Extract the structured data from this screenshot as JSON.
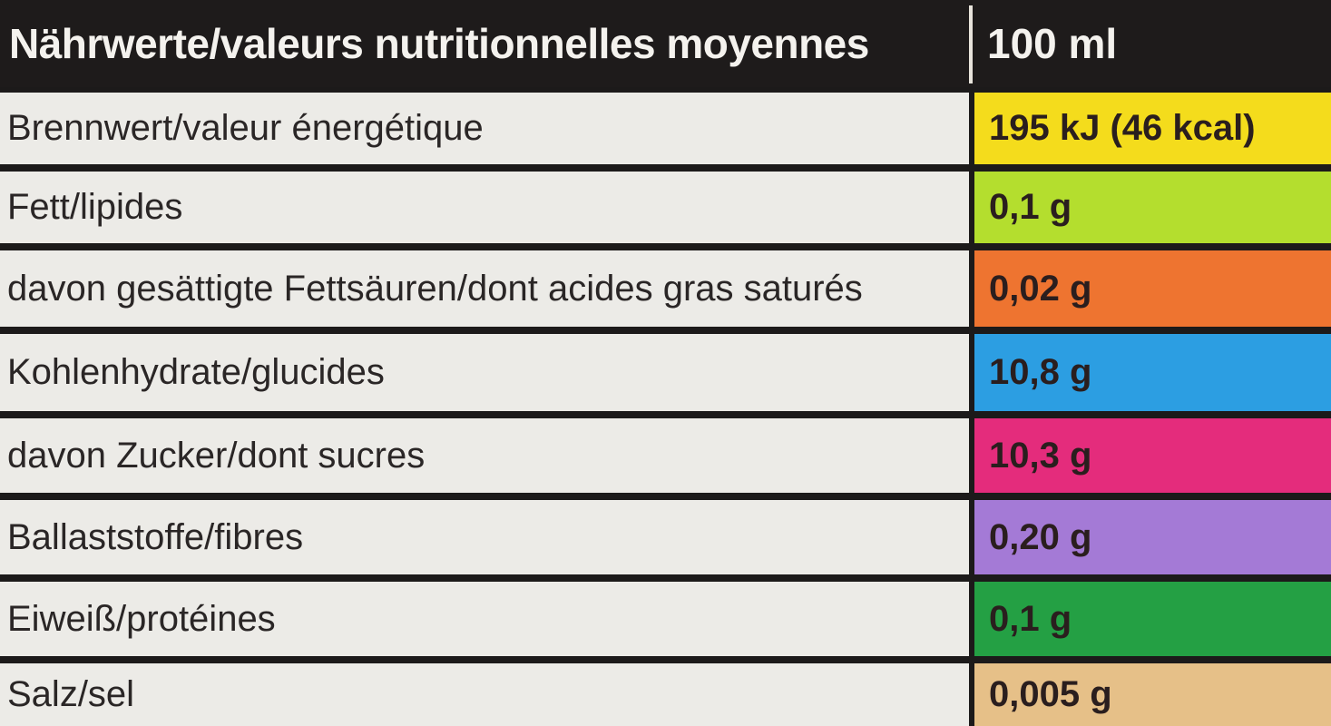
{
  "header": {
    "label": "Nährwerte/valeurs nutritionnelles moyennes",
    "unit": "100 ml"
  },
  "rows": [
    {
      "label": "Brennwert/valeur énergétique",
      "value": "195 kJ (46 kcal)",
      "color": "#f4dc1c"
    },
    {
      "label": "Fett/lipides",
      "value": "0,1 g",
      "color": "#b4de2e"
    },
    {
      "label": "davon gesättigte Fettsäuren/dont acides gras saturés",
      "value": "0,02 g",
      "color": "#ee7430"
    },
    {
      "label": "Kohlenhydrate/glucides",
      "value": "10,8 g",
      "color": "#2c9ee2"
    },
    {
      "label": "davon Zucker/dont sucres",
      "value": "10,3 g",
      "color": "#e42c7c"
    },
    {
      "label": "Ballaststoffe/fibres",
      "value": "0,20 g",
      "color": "#a47ad6"
    },
    {
      "label": "Eiweiß/protéines",
      "value": "0,1 g",
      "color": "#24a044"
    },
    {
      "label": "Salz/sel",
      "value": "0,005 g",
      "color": "#e6c088"
    }
  ]
}
